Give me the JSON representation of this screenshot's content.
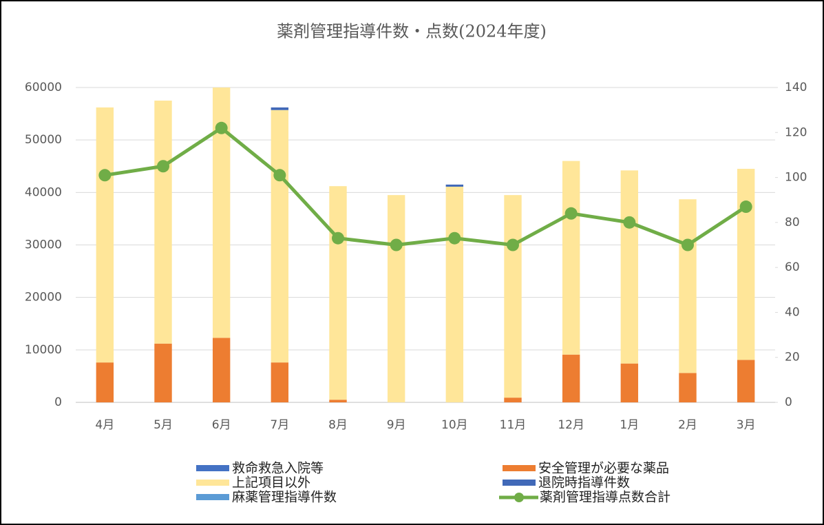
{
  "chart_data": {
    "type": "bar_line",
    "title": "薬剤管理指導件数・点数(2024年度)",
    "categories": [
      "4月",
      "5月",
      "6月",
      "7月",
      "8月",
      "9月",
      "10月",
      "11月",
      "12月",
      "1月",
      "2月",
      "3月"
    ],
    "series": [
      {
        "name": "救命救急入院等",
        "type": "bar",
        "color": "#4472c4",
        "values": [
          0,
          0,
          0,
          0,
          0,
          0,
          0,
          0,
          0,
          0,
          0,
          0
        ]
      },
      {
        "name": "安全管理が必要な薬品",
        "type": "bar",
        "color": "#ed7d31",
        "values": [
          7600,
          11200,
          12300,
          7600,
          500,
          0,
          0,
          900,
          9100,
          7400,
          5600,
          8100
        ]
      },
      {
        "name": "上記項目以外",
        "type": "bar",
        "color": "#ffe699",
        "values": [
          48600,
          46300,
          47700,
          48100,
          40700,
          39500,
          41100,
          38600,
          36900,
          36800,
          33100,
          36400
        ]
      },
      {
        "name": "退院時指導件数",
        "type": "bar",
        "color": "#4169b8",
        "values": [
          0,
          0,
          0,
          500,
          0,
          0,
          400,
          0,
          0,
          0,
          0,
          0
        ]
      },
      {
        "name": "麻薬管理指導件数",
        "type": "bar",
        "color": "#5b9bd5",
        "values": [
          0,
          0,
          0,
          0,
          0,
          0,
          0,
          0,
          0,
          0,
          0,
          0
        ]
      },
      {
        "name": "薬剤管理指導点数合計",
        "type": "line",
        "axis": "y2",
        "color": "#70ad47",
        "values": [
          101,
          105,
          122,
          101,
          73,
          70,
          73,
          70,
          84,
          80,
          70,
          87
        ]
      }
    ],
    "ylim": [
      0,
      60000
    ],
    "yticks": [
      0,
      10000,
      20000,
      30000,
      40000,
      50000,
      60000
    ],
    "y2lim": [
      0,
      140
    ],
    "y2ticks": [
      0,
      20,
      40,
      60,
      80,
      100,
      120,
      140
    ],
    "grid": true
  }
}
